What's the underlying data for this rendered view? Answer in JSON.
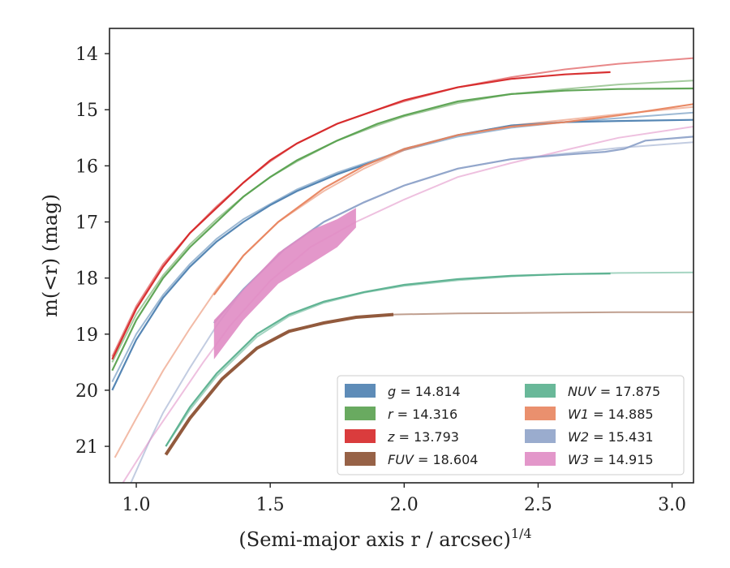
{
  "chart_data": {
    "type": "line",
    "xlabel": "(Semi-major axis r / arcsec)",
    "xlabel_power": "1/4",
    "ylabel": "m(<r) (mag)",
    "xlim": [
      0.9,
      3.08
    ],
    "ylim": [
      21.65,
      13.55
    ],
    "y_inverted": true,
    "grid": false,
    "legend_placement": "lower-right",
    "x_ticks": [
      "1.0",
      "1.5",
      "2.0",
      "2.5",
      "3.0"
    ],
    "y_ticks": [
      "14",
      "15",
      "16",
      "17",
      "18",
      "19",
      "20",
      "21"
    ],
    "series": [
      {
        "name": "g",
        "total": "14.814",
        "color": "#4c7fb0",
        "measured": {
          "x": [
            0.91,
            1.0,
            1.1,
            1.2,
            1.3,
            1.4,
            1.5,
            1.6,
            1.75,
            1.9,
            2.0,
            2.2,
            2.4,
            2.6,
            2.8,
            3.08
          ],
          "y": [
            20.0,
            19.1,
            18.35,
            17.8,
            17.35,
            17.0,
            16.7,
            16.45,
            16.15,
            15.9,
            15.7,
            15.45,
            15.28,
            15.22,
            15.2,
            15.18
          ]
        },
        "model": {
          "x": [
            0.91,
            1.0,
            1.1,
            1.2,
            1.3,
            1.4,
            1.5,
            1.6,
            1.75,
            1.9,
            2.0,
            2.2,
            2.4,
            2.6,
            2.8,
            3.08
          ],
          "y": [
            19.85,
            19.0,
            18.3,
            17.75,
            17.3,
            16.95,
            16.68,
            16.42,
            16.12,
            15.88,
            15.72,
            15.48,
            15.32,
            15.22,
            15.15,
            15.05
          ]
        }
      },
      {
        "name": "r",
        "total": "14.316",
        "color": "#59a14f",
        "measured": {
          "x": [
            0.91,
            1.0,
            1.1,
            1.2,
            1.3,
            1.4,
            1.5,
            1.6,
            1.75,
            1.9,
            2.0,
            2.2,
            2.4,
            2.6,
            2.8,
            3.08
          ],
          "y": [
            19.65,
            18.75,
            18.0,
            17.45,
            17.0,
            16.55,
            16.2,
            15.9,
            15.55,
            15.25,
            15.1,
            14.85,
            14.72,
            14.66,
            14.63,
            14.62
          ]
        },
        "model": {
          "x": [
            0.91,
            1.0,
            1.1,
            1.2,
            1.3,
            1.4,
            1.5,
            1.6,
            1.75,
            1.9,
            2.0,
            2.2,
            2.4,
            2.6,
            2.8,
            3.08
          ],
          "y": [
            19.5,
            18.65,
            17.95,
            17.4,
            16.95,
            16.55,
            16.2,
            15.92,
            15.55,
            15.28,
            15.12,
            14.88,
            14.72,
            14.63,
            14.55,
            14.48
          ]
        }
      },
      {
        "name": "z",
        "total": "13.793",
        "color": "#d62728",
        "measured": {
          "x": [
            0.91,
            1.0,
            1.1,
            1.2,
            1.3,
            1.4,
            1.5,
            1.6,
            1.75,
            1.9,
            2.0,
            2.2,
            2.4,
            2.6,
            2.77
          ],
          "y": [
            19.45,
            18.55,
            17.8,
            17.2,
            16.75,
            16.3,
            15.9,
            15.6,
            15.25,
            15.0,
            14.83,
            14.6,
            14.45,
            14.37,
            14.33
          ]
        },
        "model": {
          "x": [
            0.91,
            1.0,
            1.1,
            1.2,
            1.3,
            1.4,
            1.5,
            1.6,
            1.75,
            1.9,
            2.0,
            2.2,
            2.4,
            2.6,
            2.8,
            3.08
          ],
          "y": [
            19.4,
            18.5,
            17.75,
            17.2,
            16.72,
            16.3,
            15.92,
            15.6,
            15.25,
            15.0,
            14.85,
            14.6,
            14.42,
            14.28,
            14.18,
            14.08
          ]
        }
      },
      {
        "name": "FUV",
        "total": "18.604",
        "color": "#8c5133",
        "measured": {
          "x": [
            1.11,
            1.2,
            1.32,
            1.45,
            1.57,
            1.7,
            1.82,
            1.96
          ],
          "y": [
            21.15,
            20.5,
            19.8,
            19.25,
            18.95,
            18.8,
            18.7,
            18.65
          ]
        },
        "model": {
          "x": [
            1.96,
            2.2,
            2.5,
            2.8,
            3.08
          ],
          "y": [
            18.65,
            18.63,
            18.62,
            18.61,
            18.61
          ]
        }
      },
      {
        "name": "NUV",
        "total": "17.875",
        "color": "#59b08e",
        "measured": {
          "x": [
            1.11,
            1.2,
            1.3,
            1.45,
            1.57,
            1.7,
            1.85,
            2.0,
            2.2,
            2.4,
            2.6,
            2.77
          ],
          "y": [
            21.0,
            20.3,
            19.7,
            19.0,
            18.65,
            18.42,
            18.25,
            18.12,
            18.02,
            17.96,
            17.93,
            17.92
          ]
        },
        "model": {
          "x": [
            1.11,
            1.2,
            1.3,
            1.45,
            1.57,
            1.7,
            1.85,
            2.0,
            2.2,
            2.4,
            2.6,
            2.8,
            3.08
          ],
          "y": [
            21.0,
            20.35,
            19.75,
            19.05,
            18.68,
            18.44,
            18.26,
            18.14,
            18.04,
            17.97,
            17.93,
            17.91,
            17.9
          ]
        }
      },
      {
        "name": "W1",
        "total": "14.885",
        "color": "#e8845e",
        "measured": {
          "x": [
            1.29,
            1.4,
            1.53,
            1.7,
            1.85,
            2.0,
            2.2,
            2.4,
            2.6,
            2.8,
            3.08
          ],
          "y": [
            18.3,
            17.6,
            17.0,
            16.4,
            16.0,
            15.7,
            15.45,
            15.3,
            15.22,
            15.1,
            14.9
          ]
        },
        "model": {
          "x": [
            0.92,
            1.0,
            1.1,
            1.2,
            1.3,
            1.4,
            1.53,
            1.7,
            1.85,
            2.0,
            2.2,
            2.4,
            2.6,
            2.8,
            3.08
          ],
          "y": [
            21.2,
            20.5,
            19.65,
            18.9,
            18.2,
            17.6,
            17.0,
            16.45,
            16.05,
            15.72,
            15.45,
            15.28,
            15.18,
            15.08,
            14.95
          ]
        }
      },
      {
        "name": "W2",
        "total": "15.431",
        "color": "#8fa3c9",
        "measured": {
          "x": [
            1.29,
            1.4,
            1.55,
            1.7,
            1.85,
            2.0,
            2.2,
            2.4,
            2.6,
            2.75,
            2.82,
            2.9,
            3.08
          ],
          "y": [
            18.8,
            18.2,
            17.5,
            17.0,
            16.65,
            16.35,
            16.05,
            15.88,
            15.8,
            15.75,
            15.7,
            15.55,
            15.48
          ]
        },
        "model": {
          "x": [
            0.98,
            1.05,
            1.1,
            1.2,
            1.3,
            1.4,
            1.55,
            1.7,
            1.85,
            2.0,
            2.2,
            2.4,
            2.6,
            2.8,
            3.08
          ],
          "y": [
            21.65,
            20.9,
            20.4,
            19.6,
            18.85,
            18.2,
            17.5,
            17.0,
            16.65,
            16.35,
            16.05,
            15.88,
            15.78,
            15.68,
            15.58
          ]
        }
      },
      {
        "name": "W3",
        "total": "14.915",
        "color": "#e08cc4",
        "band_x": [
          1.29,
          1.4,
          1.53,
          1.65,
          1.75,
          1.82
        ],
        "band_upper": [
          18.75,
          18.2,
          17.55,
          17.15,
          16.95,
          16.75
        ],
        "band_lower": [
          19.45,
          18.75,
          18.1,
          17.75,
          17.45,
          17.1
        ],
        "model": {
          "x": [
            0.95,
            1.05,
            1.15,
            1.25,
            1.35,
            1.5,
            1.65,
            1.82,
            2.0,
            2.2,
            2.4,
            2.6,
            2.8,
            3.08
          ],
          "y": [
            21.65,
            20.9,
            20.2,
            19.5,
            18.85,
            18.05,
            17.45,
            17.0,
            16.6,
            16.2,
            15.95,
            15.72,
            15.5,
            15.3
          ]
        }
      }
    ]
  }
}
